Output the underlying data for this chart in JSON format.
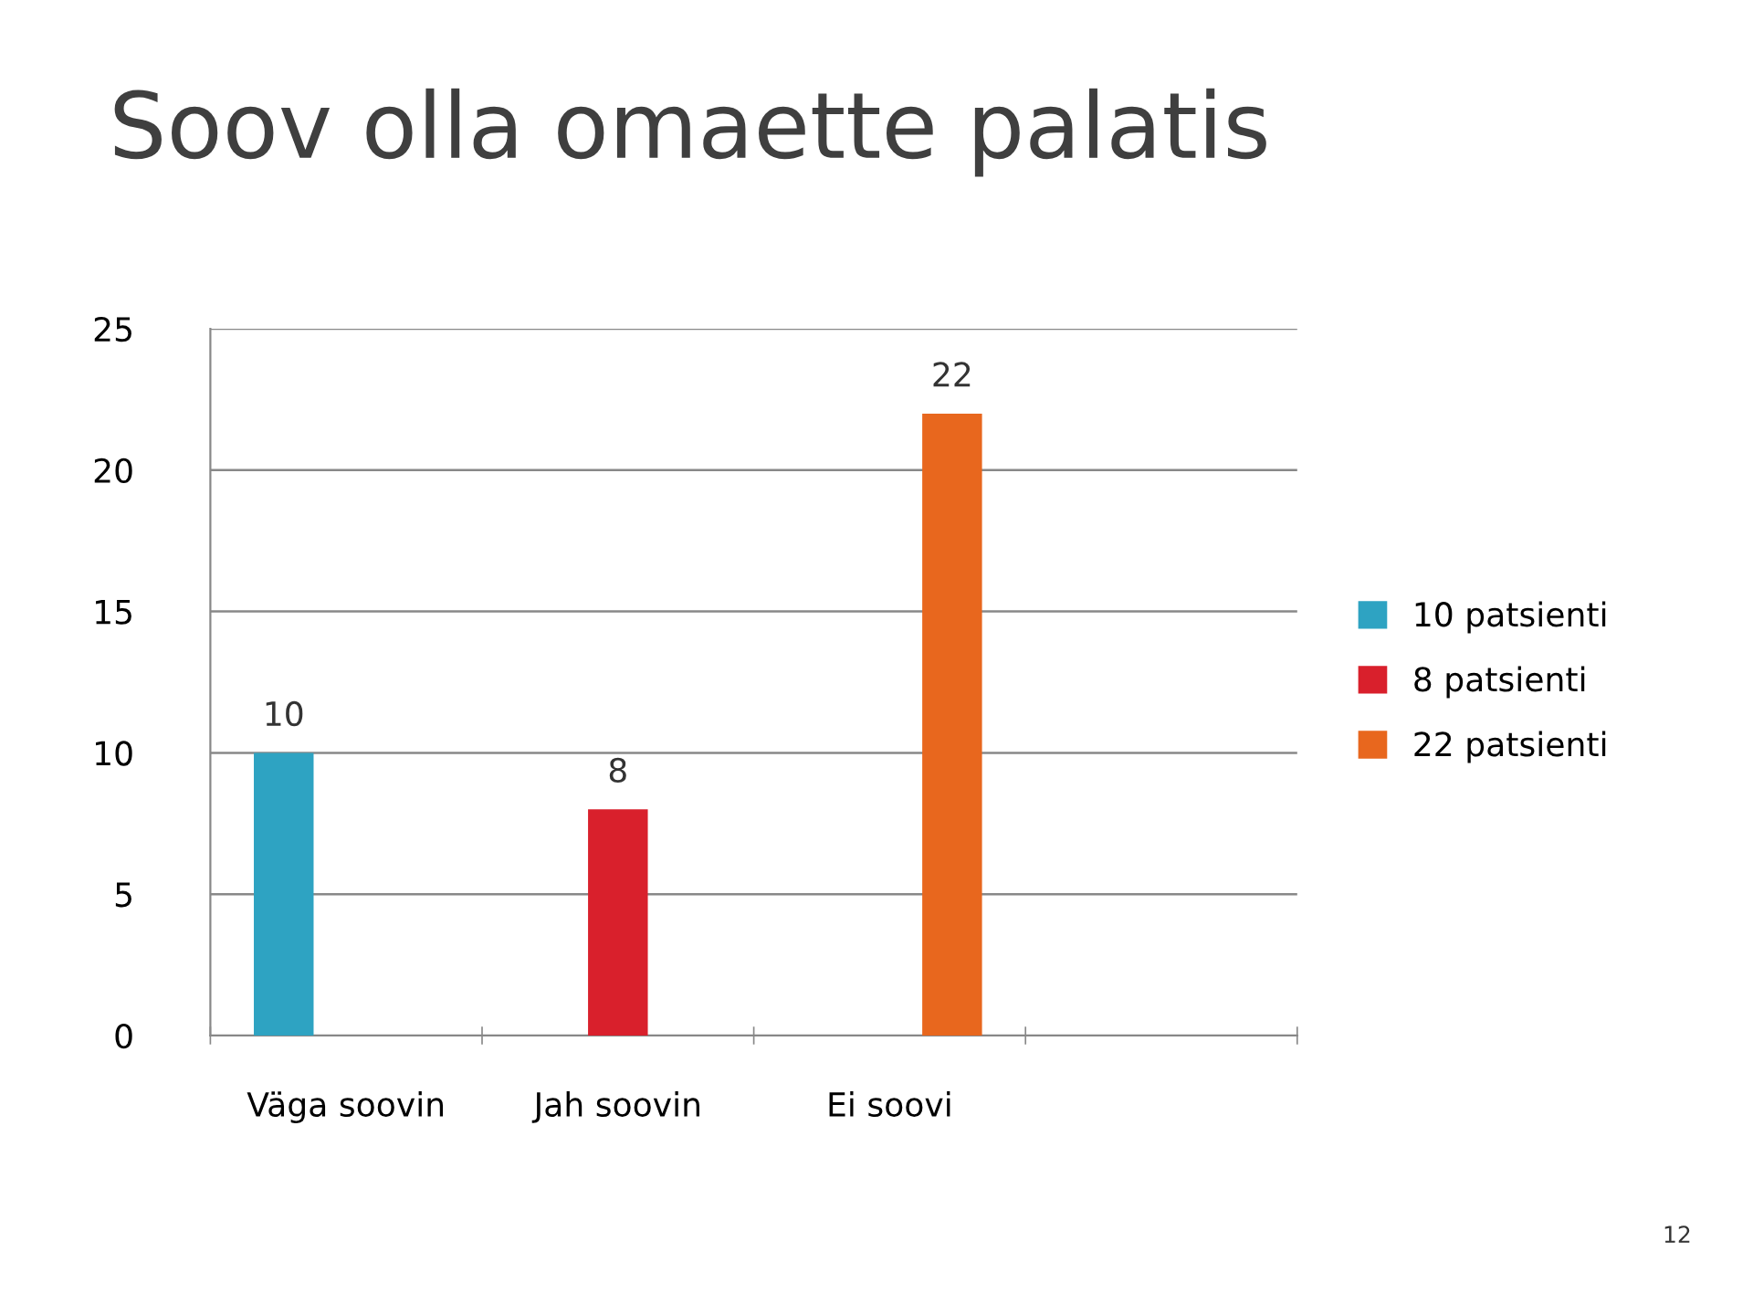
{
  "chart_data": {
    "type": "bar",
    "title": "Soov olla omaette palatis",
    "categories": [
      "Väga soovin",
      "Jah soovin",
      "Ei soovi",
      null
    ],
    "series": [
      {
        "name": "10 patsienti",
        "color": "#2ea3c2",
        "values": [
          10,
          null,
          null,
          null
        ]
      },
      {
        "name": "8 patsienti",
        "color": "#d9202c",
        "values": [
          null,
          8,
          null,
          null
        ]
      },
      {
        "name": "22 patsienti",
        "color": "#e8671e",
        "values": [
          null,
          null,
          22,
          null
        ]
      }
    ],
    "ylim": [
      0,
      25
    ],
    "yticks": [
      0,
      5,
      10,
      15,
      20,
      25
    ],
    "grid": "y",
    "legend": "right",
    "data_labels": true,
    "annotations": [
      "12"
    ]
  }
}
